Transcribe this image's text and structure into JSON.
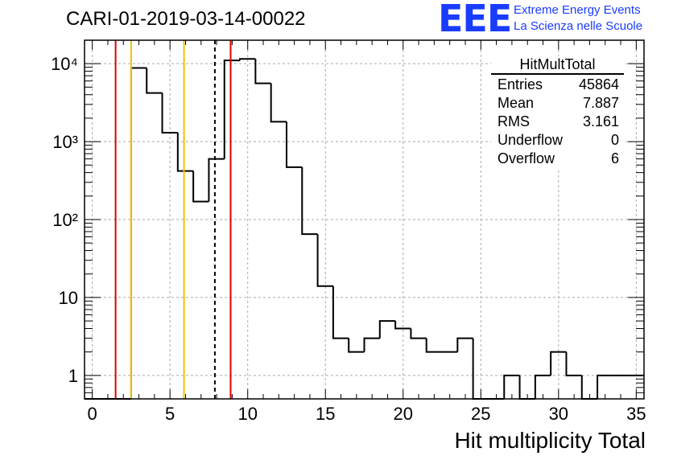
{
  "title": "CARI-01-2019-03-14-00022",
  "logo": {
    "mark": "EEE",
    "line1": "Extreme Energy Events",
    "line2": "La Scienza nelle Scuole"
  },
  "stats": {
    "name": "HitMultTotal",
    "rows": [
      {
        "label": "Entries",
        "value": "45864"
      },
      {
        "label": "Mean",
        "value": "7.887"
      },
      {
        "label": "RMS",
        "value": "3.161"
      },
      {
        "label": "Underflow",
        "value": "0"
      },
      {
        "label": "Overflow",
        "value": "6"
      }
    ]
  },
  "colors": {
    "histogram": "#000000",
    "red_marker": "#e00000",
    "yellow_marker": "#f2c200",
    "mean_marker": "#000000",
    "grid": "#aaaaaa",
    "logo": "#1a3cff"
  },
  "chart_data": {
    "type": "histogram",
    "title": "CARI-01-2019-03-14-00022",
    "xlabel": "Hit multiplicity Total",
    "ylabel": "",
    "xlim": [
      -0.5,
      35.5
    ],
    "ylim": [
      0.5,
      20000
    ],
    "yscale": "log",
    "grid": true,
    "bin_width": 1,
    "x_ticks": [
      0,
      5,
      10,
      15,
      20,
      25,
      30,
      35
    ],
    "x_tick_labels": [
      "0",
      "5",
      "10",
      "15",
      "20",
      "25",
      "30",
      "35"
    ],
    "y_ticks": [
      1,
      10,
      100,
      1000,
      10000
    ],
    "y_tick_labels": [
      "1",
      "10",
      "10²",
      "10³",
      "10⁴"
    ],
    "bin_centers": [
      0,
      1,
      2,
      3,
      4,
      5,
      6,
      7,
      8,
      9,
      10,
      11,
      12,
      13,
      14,
      15,
      16,
      17,
      18,
      19,
      20,
      21,
      22,
      23,
      24,
      25,
      26,
      27,
      28,
      29,
      30,
      31,
      32,
      33,
      34,
      35
    ],
    "counts": [
      0,
      0,
      0,
      8800,
      4200,
      1300,
      420,
      170,
      600,
      11000,
      11500,
      5600,
      1800,
      470,
      65,
      14,
      3,
      2,
      3,
      5,
      4,
      3,
      2,
      2,
      3,
      0,
      0,
      1,
      0,
      1,
      2,
      1,
      0,
      1,
      1,
      1
    ],
    "vertical_lines": [
      {
        "x": 1.5,
        "style": "solid",
        "color": "red"
      },
      {
        "x": 2.5,
        "style": "solid",
        "color": "yellow"
      },
      {
        "x": 5.9,
        "style": "solid",
        "color": "yellow"
      },
      {
        "x": 7.887,
        "style": "dashed",
        "color": "black"
      },
      {
        "x": 8.9,
        "style": "solid",
        "color": "red"
      }
    ],
    "legend": "top-right"
  }
}
